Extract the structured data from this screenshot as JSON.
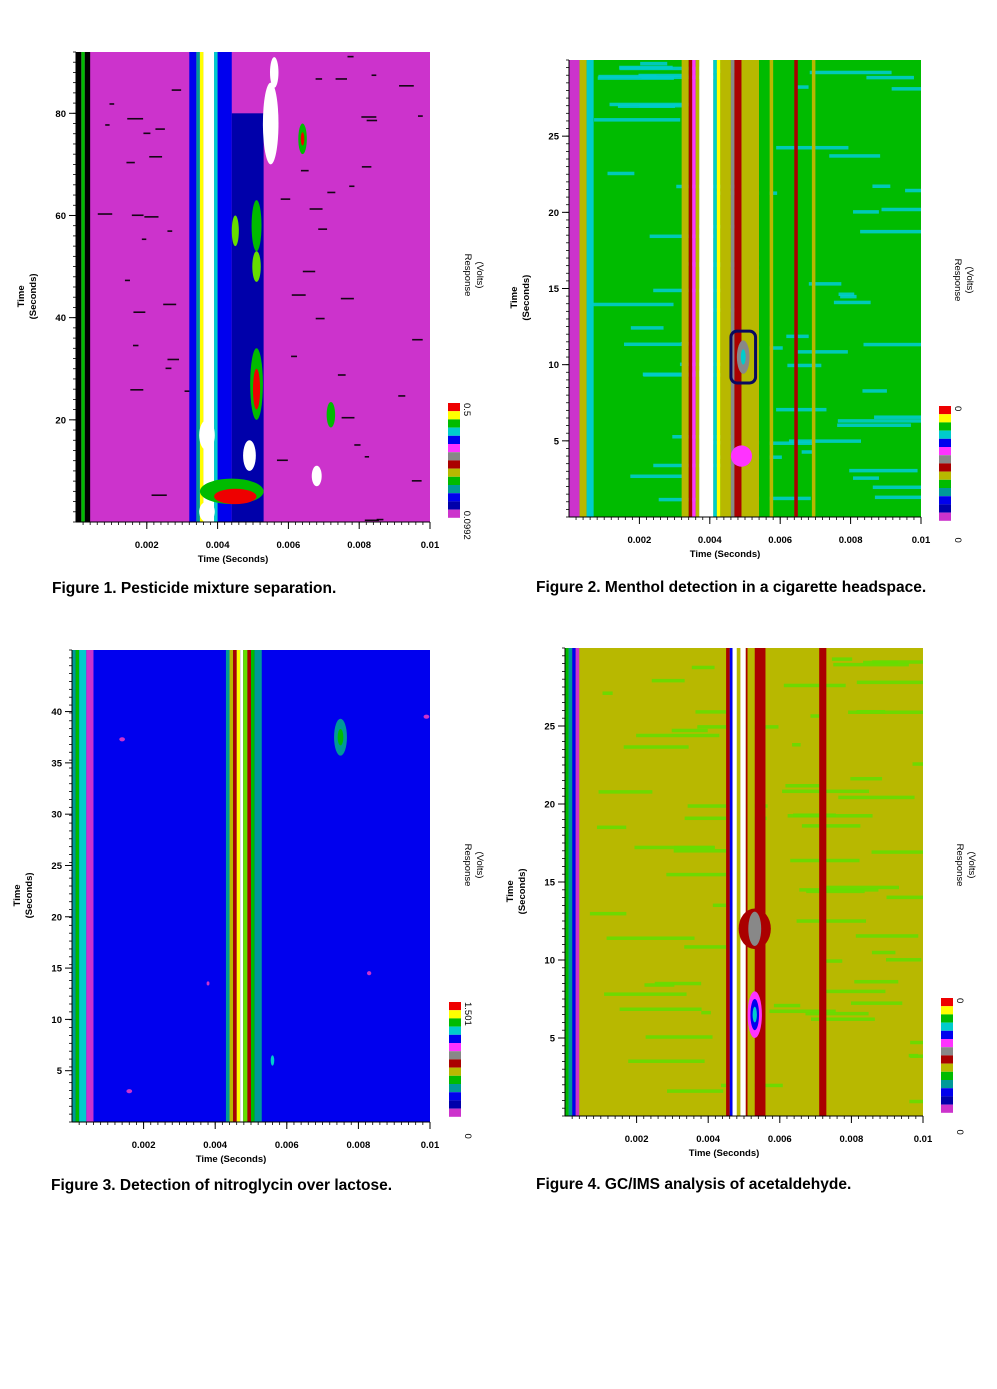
{
  "colors": {
    "magenta": "#cc33cc",
    "navy": "#0000aa",
    "blue": "#0000ee",
    "teal": "#009999",
    "cyan": "#00cccc",
    "green": "#00bb00",
    "lime": "#66dd00",
    "olive": "#b8b800",
    "darkred": "#aa0000",
    "red": "#ee0000",
    "yellow": "#ffff00",
    "gray": "#888888",
    "pink": "#ff33ff",
    "white": "#ffffff",
    "black": "#000000"
  },
  "chart_data": [
    {
      "type": "heatmap",
      "caption": "Figure 1.  Pesticide mixture separation.",
      "xlabel": "Time (Seconds)",
      "ylabel": [
        "Time",
        "(Seconds)"
      ],
      "colorbar_label": [
        "Response",
        "(Volts)"
      ],
      "colorbar_ticks": [
        "0.5",
        "0.0992"
      ],
      "xlim": [
        0,
        0.01
      ],
      "ylim": [
        0,
        92
      ],
      "xticks": [
        0.002,
        0.004,
        0.006,
        0.008,
        0.01
      ],
      "xtick_labels": [
        "0.002",
        "0.004",
        "0.006",
        "0.008",
        "0.01"
      ],
      "yticks": [
        20,
        40,
        60,
        80
      ],
      "ytick_labels": [
        "20",
        "40",
        "60",
        "80"
      ],
      "background": "magenta",
      "bands": [
        {
          "x0": 0.0,
          "x1": 0.00015,
          "color": "black"
        },
        {
          "x0": 0.00015,
          "x1": 0.00025,
          "color": "green"
        },
        {
          "x0": 0.00025,
          "x1": 0.0004,
          "color": "black"
        },
        {
          "x0": 0.0032,
          "x1": 0.0034,
          "color": "blue"
        },
        {
          "x0": 0.0034,
          "x1": 0.0035,
          "color": "teal"
        },
        {
          "x0": 0.0035,
          "x1": 0.0036,
          "color": "yellow"
        },
        {
          "x0": 0.0036,
          "x1": 0.0039,
          "color": "white"
        },
        {
          "x0": 0.0039,
          "x1": 0.004,
          "color": "cyan"
        },
        {
          "x0": 0.004,
          "x1": 0.0044,
          "color": "blue"
        },
        {
          "x0": 0.0044,
          "x1": 0.0053,
          "color": "navy",
          "y1": 80
        }
      ],
      "blobs": [
        {
          "x": 0.00378,
          "y": 88,
          "rx": 0.0001,
          "ry": 4,
          "color": "white"
        },
        {
          "x": 0.0055,
          "y": 78,
          "rx": 0.00022,
          "ry": 8,
          "color": "white"
        },
        {
          "x": 0.0056,
          "y": 88,
          "rx": 0.00012,
          "ry": 3,
          "color": "white"
        },
        {
          "x": 0.0064,
          "y": 75,
          "rx": 0.00012,
          "ry": 3,
          "color": "green"
        },
        {
          "x": 0.0064,
          "y": 75,
          "rx": 5e-05,
          "ry": 1.3,
          "color": "red"
        },
        {
          "x": 0.0051,
          "y": 58,
          "rx": 0.00014,
          "ry": 5,
          "color": "green"
        },
        {
          "x": 0.0051,
          "y": 50,
          "rx": 0.00012,
          "ry": 3,
          "color": "lime"
        },
        {
          "x": 0.0045,
          "y": 57,
          "rx": 0.0001,
          "ry": 3,
          "color": "lime"
        },
        {
          "x": 0.0051,
          "y": 27,
          "rx": 0.00018,
          "ry": 7,
          "color": "green"
        },
        {
          "x": 0.0051,
          "y": 26,
          "rx": 0.0001,
          "ry": 4,
          "color": "red"
        },
        {
          "x": 0.0049,
          "y": 13,
          "rx": 0.00018,
          "ry": 3,
          "color": "white"
        },
        {
          "x": 0.0072,
          "y": 21,
          "rx": 0.00012,
          "ry": 2.5,
          "color": "green"
        },
        {
          "x": 0.0068,
          "y": 9,
          "rx": 0.00014,
          "ry": 2,
          "color": "white"
        },
        {
          "x": 0.0044,
          "y": 6,
          "rx": 0.0009,
          "ry": 2.5,
          "color": "green"
        },
        {
          "x": 0.0045,
          "y": 5,
          "rx": 0.0006,
          "ry": 1.5,
          "color": "red"
        },
        {
          "x": 0.0037,
          "y": 2,
          "rx": 0.00022,
          "ry": 2,
          "color": "white"
        },
        {
          "x": 0.0037,
          "y": 17,
          "rx": 0.00022,
          "ry": 3,
          "color": "white"
        }
      ],
      "colorbar_colors": [
        "red",
        "yellow",
        "green",
        "cyan",
        "blue",
        "pink",
        "gray",
        "darkred",
        "olive",
        "green",
        "teal",
        "blue",
        "navy",
        "magenta"
      ]
    },
    {
      "type": "heatmap",
      "caption": "Figure 2.  Menthol detection in a cigarette headspace.",
      "xlabel": "Time (Seconds)",
      "ylabel": [
        "Time",
        "(Seconds)"
      ],
      "colorbar_label": [
        "Response",
        "(Volts)"
      ],
      "colorbar_ticks": [
        "0",
        "0"
      ],
      "xlim": [
        0,
        0.01
      ],
      "ylim": [
        0,
        30
      ],
      "xticks": [
        0.002,
        0.004,
        0.006,
        0.008,
        0.01
      ],
      "xtick_labels": [
        "0.002",
        "0.004",
        "0.006",
        "0.008",
        "0.01"
      ],
      "yticks": [
        5,
        10,
        15,
        20,
        25
      ],
      "ytick_labels": [
        "5",
        "10",
        "15",
        "20",
        "25"
      ],
      "background": "green",
      "bands": [
        {
          "x0": 0.0,
          "x1": 0.0003,
          "color": "magenta"
        },
        {
          "x0": 0.0003,
          "x1": 0.0005,
          "color": "olive"
        },
        {
          "x0": 0.0005,
          "x1": 0.0007,
          "color": "cyan"
        },
        {
          "x0": 0.0032,
          "x1": 0.0034,
          "color": "olive"
        },
        {
          "x0": 0.0034,
          "x1": 0.0035,
          "color": "darkred"
        },
        {
          "x0": 0.0035,
          "x1": 0.0036,
          "color": "pink"
        },
        {
          "x0": 0.0036,
          "x1": 0.0037,
          "color": "olive"
        },
        {
          "x0": 0.0037,
          "x1": 0.0041,
          "color": "white"
        },
        {
          "x0": 0.0041,
          "x1": 0.0042,
          "color": "cyan"
        },
        {
          "x0": 0.0042,
          "x1": 0.0043,
          "color": "yellow"
        },
        {
          "x0": 0.0043,
          "x1": 0.0046,
          "color": "olive"
        },
        {
          "x0": 0.0046,
          "x1": 0.0047,
          "color": "gray"
        },
        {
          "x0": 0.0047,
          "x1": 0.0049,
          "color": "darkred"
        },
        {
          "x0": 0.0049,
          "x1": 0.0054,
          "color": "olive"
        },
        {
          "x0": 0.0054,
          "x1": 0.0057,
          "color": "green"
        },
        {
          "x0": 0.0057,
          "x1": 0.0058,
          "color": "olive"
        },
        {
          "x0": 0.0064,
          "x1": 0.0065,
          "color": "darkred"
        },
        {
          "x0": 0.0069,
          "x1": 0.007,
          "color": "olive"
        }
      ],
      "blobs": [
        {
          "x": 0.00495,
          "y": 10.5,
          "rx": 0.00018,
          "ry": 1.1,
          "color": "gray"
        },
        {
          "x": 0.00495,
          "y": 10.5,
          "rx": 7e-05,
          "ry": 0.5,
          "color": "cyan"
        },
        {
          "x": 0.0049,
          "y": 4,
          "rx": 0.0003,
          "ry": 0.7,
          "color": "pink"
        }
      ],
      "annotation_box": {
        "x0": 0.0046,
        "x1": 0.0053,
        "y0": 8.8,
        "y1": 12.2
      },
      "colorbar_colors": [
        "red",
        "yellow",
        "green",
        "cyan",
        "blue",
        "pink",
        "gray",
        "darkred",
        "olive",
        "green",
        "teal",
        "blue",
        "navy",
        "magenta"
      ]
    },
    {
      "type": "heatmap",
      "caption": "Figure 3.  Detection of nitroglycin over lactose.",
      "xlabel": "Time (Seconds)",
      "ylabel": [
        "Time",
        "(Seconds)"
      ],
      "colorbar_label": [
        "Response",
        "(Volts)"
      ],
      "colorbar_ticks": [
        "1.501",
        "0"
      ],
      "xlim": [
        0,
        0.01
      ],
      "ylim": [
        0,
        46
      ],
      "xticks": [
        0.002,
        0.004,
        0.006,
        0.008,
        0.01
      ],
      "xtick_labels": [
        "0.002",
        "0.004",
        "0.006",
        "0.008",
        "0.01"
      ],
      "yticks": [
        5,
        10,
        15,
        20,
        25,
        30,
        35,
        40
      ],
      "ytick_labels": [
        "5",
        "10",
        "15",
        "20",
        "25",
        "30",
        "35",
        "40"
      ],
      "background": "blue",
      "bands": [
        {
          "x0": 0.0,
          "x1": 0.0001,
          "color": "teal"
        },
        {
          "x0": 0.0001,
          "x1": 0.0002,
          "color": "green"
        },
        {
          "x0": 0.0002,
          "x1": 0.0004,
          "color": "cyan"
        },
        {
          "x0": 0.0004,
          "x1": 0.0006,
          "color": "magenta"
        },
        {
          "x0": 0.0043,
          "x1": 0.0044,
          "color": "teal"
        },
        {
          "x0": 0.0044,
          "x1": 0.0045,
          "color": "olive"
        },
        {
          "x0": 0.0045,
          "x1": 0.0046,
          "color": "darkred"
        },
        {
          "x0": 0.0046,
          "x1": 0.0047,
          "color": "yellow"
        },
        {
          "x0": 0.0047,
          "x1": 0.00478,
          "color": "white"
        },
        {
          "x0": 0.00478,
          "x1": 0.0049,
          "color": "lime"
        },
        {
          "x0": 0.0049,
          "x1": 0.005,
          "color": "darkred"
        },
        {
          "x0": 0.005,
          "x1": 0.0051,
          "color": "green"
        },
        {
          "x0": 0.0051,
          "x1": 0.0053,
          "color": "teal"
        }
      ],
      "blobs": [
        {
          "x": 0.0075,
          "y": 37.5,
          "rx": 0.00018,
          "ry": 1.8,
          "color": "teal"
        },
        {
          "x": 0.0075,
          "y": 37.5,
          "rx": 8e-05,
          "ry": 0.8,
          "color": "green"
        },
        {
          "x": 0.0014,
          "y": 37.3,
          "rx": 8e-05,
          "ry": 0.2,
          "color": "magenta"
        },
        {
          "x": 0.0099,
          "y": 39.5,
          "rx": 8e-05,
          "ry": 0.2,
          "color": "magenta"
        },
        {
          "x": 0.0083,
          "y": 14.5,
          "rx": 6e-05,
          "ry": 0.2,
          "color": "magenta"
        },
        {
          "x": 0.0038,
          "y": 13.5,
          "rx": 4e-05,
          "ry": 0.2,
          "color": "magenta"
        },
        {
          "x": 0.0016,
          "y": 3.0,
          "rx": 8e-05,
          "ry": 0.2,
          "color": "magenta"
        },
        {
          "x": 0.0056,
          "y": 6,
          "rx": 5e-05,
          "ry": 0.5,
          "color": "cyan"
        }
      ],
      "colorbar_colors": [
        "red",
        "yellow",
        "green",
        "cyan",
        "blue",
        "pink",
        "gray",
        "darkred",
        "olive",
        "green",
        "teal",
        "blue",
        "navy",
        "magenta"
      ]
    },
    {
      "type": "heatmap",
      "caption": "Figure 4.  GC/IMS analysis of acetaldehyde.",
      "xlabel": "Time (Seconds)",
      "ylabel": [
        "Time",
        "(Seconds)"
      ],
      "colorbar_label": [
        "Response",
        "(Volts)"
      ],
      "colorbar_ticks": [
        "0",
        "0"
      ],
      "xlim": [
        0,
        0.01
      ],
      "ylim": [
        0,
        30
      ],
      "xticks": [
        0.002,
        0.004,
        0.006,
        0.008,
        0.01
      ],
      "xtick_labels": [
        "0.002",
        "0.004",
        "0.006",
        "0.008",
        "0.01"
      ],
      "yticks": [
        5,
        10,
        15,
        20,
        25
      ],
      "ytick_labels": [
        "5",
        "10",
        "15",
        "20",
        "25"
      ],
      "background": "olive",
      "bands": [
        {
          "x0": 0.0,
          "x1": 0.0001,
          "color": "green"
        },
        {
          "x0": 0.0001,
          "x1": 0.0002,
          "color": "teal"
        },
        {
          "x0": 0.0002,
          "x1": 0.0003,
          "color": "blue"
        },
        {
          "x0": 0.0003,
          "x1": 0.0004,
          "color": "magenta"
        },
        {
          "x0": 0.0004,
          "x1": 0.0006,
          "color": "olive"
        },
        {
          "x0": 0.0045,
          "x1": 0.0046,
          "color": "darkred"
        },
        {
          "x0": 0.0046,
          "x1": 0.00468,
          "color": "blue"
        },
        {
          "x0": 0.00468,
          "x1": 0.0048,
          "color": "white"
        },
        {
          "x0": 0.0048,
          "x1": 0.0049,
          "color": "olive"
        },
        {
          "x0": 0.0049,
          "x1": 0.00505,
          "color": "white"
        },
        {
          "x0": 0.00505,
          "x1": 0.0051,
          "color": "darkred"
        },
        {
          "x0": 0.0051,
          "x1": 0.0053,
          "color": "olive"
        },
        {
          "x0": 0.0053,
          "x1": 0.0056,
          "color": "darkred"
        },
        {
          "x0": 0.0071,
          "x1": 0.0073,
          "color": "darkred"
        }
      ],
      "blobs": [
        {
          "x": 0.0053,
          "y": 12,
          "rx": 0.00045,
          "ry": 1.3,
          "color": "darkred"
        },
        {
          "x": 0.0053,
          "y": 12,
          "rx": 0.00018,
          "ry": 1.1,
          "color": "gray"
        },
        {
          "x": 0.0053,
          "y": 6.5,
          "rx": 0.0002,
          "ry": 1.5,
          "color": "pink"
        },
        {
          "x": 0.0053,
          "y": 6.5,
          "rx": 0.00012,
          "ry": 1.0,
          "color": "blue"
        },
        {
          "x": 0.0053,
          "y": 6.5,
          "rx": 6e-05,
          "ry": 0.5,
          "color": "cyan"
        }
      ],
      "colorbar_colors": [
        "red",
        "yellow",
        "green",
        "cyan",
        "blue",
        "pink",
        "gray",
        "darkred",
        "olive",
        "green",
        "teal",
        "blue",
        "navy",
        "magenta"
      ]
    }
  ]
}
